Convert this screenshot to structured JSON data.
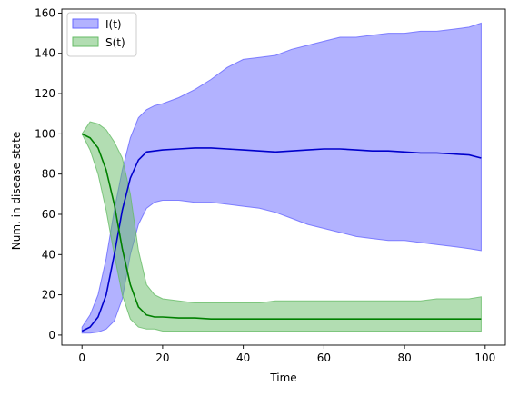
{
  "chart_data": {
    "type": "area",
    "title": "",
    "xlabel": "Time",
    "ylabel": "Num. in disease state",
    "xlim": [
      -5,
      105
    ],
    "ylim": [
      -5,
      162
    ],
    "xticks": [
      0,
      20,
      40,
      60,
      80,
      100
    ],
    "yticks": [
      0,
      20,
      40,
      60,
      80,
      100,
      120,
      140,
      160
    ],
    "grid": false,
    "legend": {
      "placement": "top-left"
    },
    "series": [
      {
        "name": "I(t)",
        "color": "#0000cc",
        "band_color": "#6666ff",
        "x": [
          0,
          2,
          4,
          6,
          8,
          10,
          12,
          14,
          16,
          18,
          20,
          24,
          28,
          32,
          36,
          40,
          44,
          48,
          52,
          56,
          60,
          64,
          68,
          72,
          76,
          80,
          84,
          88,
          92,
          96,
          99
        ],
        "mean": [
          2,
          4,
          9,
          20,
          40,
          62,
          78,
          87,
          91,
          91.5,
          92,
          92.5,
          93,
          93,
          92.5,
          92,
          91.5,
          91,
          91.5,
          92,
          92.5,
          92.5,
          92,
          91.5,
          91.5,
          91,
          90.5,
          90.5,
          90,
          89.5,
          88
        ],
        "lower": [
          1,
          1,
          1.5,
          3,
          7,
          18,
          40,
          55,
          63,
          66,
          67,
          67,
          66,
          66,
          65,
          64,
          63,
          61,
          58,
          55,
          53,
          51,
          49,
          48,
          47,
          47,
          46,
          45,
          44,
          43,
          42
        ],
        "upper": [
          4,
          10,
          20,
          38,
          62,
          82,
          98,
          108,
          112,
          114,
          115,
          118,
          122,
          127,
          133,
          137,
          138,
          139,
          142,
          144,
          146,
          148,
          148,
          149,
          150,
          150,
          151,
          151,
          152,
          153,
          155
        ]
      },
      {
        "name": "S(t)",
        "color": "#008000",
        "band_color": "#66bb66",
        "x": [
          0,
          2,
          4,
          6,
          8,
          10,
          12,
          14,
          16,
          18,
          20,
          24,
          28,
          32,
          36,
          40,
          44,
          48,
          52,
          56,
          60,
          64,
          68,
          72,
          76,
          80,
          84,
          88,
          92,
          96,
          99
        ],
        "mean": [
          100,
          98,
          93,
          82,
          65,
          43,
          25,
          14,
          10,
          9,
          9,
          8.5,
          8.5,
          8,
          8,
          8,
          8,
          8,
          8,
          8,
          8,
          8,
          8,
          8,
          8,
          8,
          8,
          8,
          8,
          8,
          8
        ],
        "lower": [
          100,
          92,
          80,
          62,
          40,
          20,
          8,
          4,
          3,
          3,
          2,
          2,
          2,
          2,
          2,
          2,
          2,
          2,
          2,
          2,
          2,
          2,
          2,
          2,
          2,
          2,
          2,
          2,
          2,
          2,
          2
        ],
        "upper": [
          100,
          106,
          105,
          102,
          96,
          88,
          70,
          42,
          25,
          20,
          18,
          17,
          16,
          16,
          16,
          16,
          16,
          17,
          17,
          17,
          17,
          17,
          17,
          17,
          17,
          17,
          17,
          18,
          18,
          18,
          19
        ]
      }
    ]
  }
}
